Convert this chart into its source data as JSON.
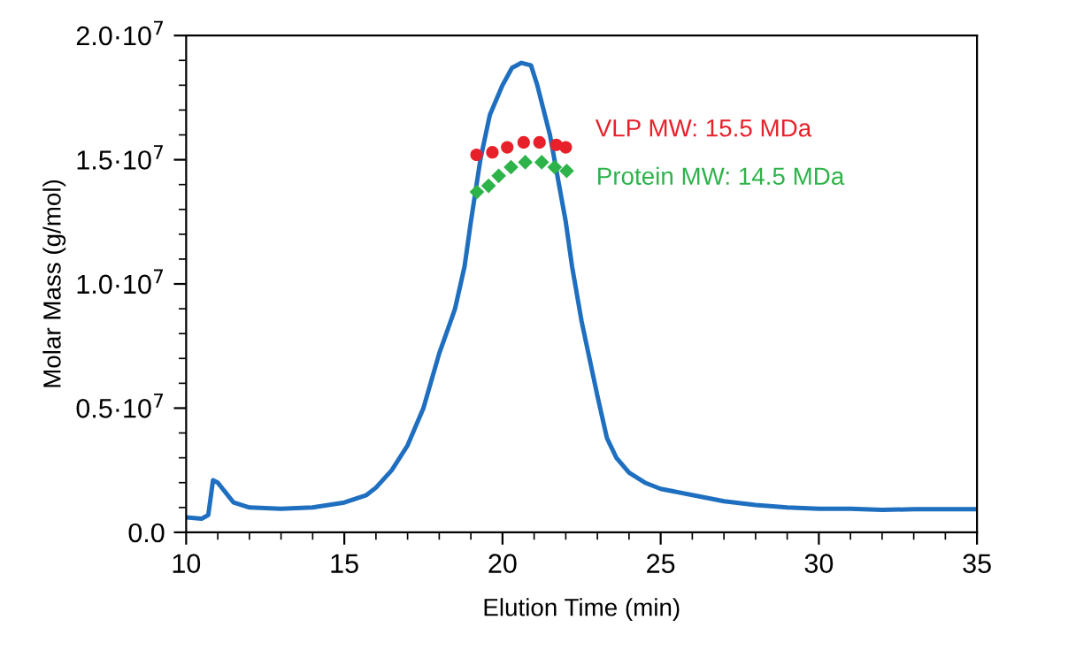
{
  "chart_data": {
    "type": "line",
    "xlabel": "Elution Time (min)",
    "ylabel": "Molar Mass (g/mol)",
    "xlim": [
      10,
      35
    ],
    "xticks": [
      10,
      15,
      20,
      25,
      30,
      35
    ],
    "ylim": [
      0,
      20000000
    ],
    "yticks": [
      {
        "value": 0,
        "label": "0.0"
      },
      {
        "value": 5000000,
        "label": "0.5·10$^{7}$"
      },
      {
        "value": 10000000,
        "label": "1.0·10$^{7}$"
      },
      {
        "value": 15000000,
        "label": "1.5·10$^{7}$"
      },
      {
        "value": 20000000,
        "label": "2.0·10$^{7}$"
      }
    ],
    "grid": false,
    "legend": false,
    "series": [
      {
        "color": "#1f6fc0",
        "marker": "none",
        "x": [
          10,
          10.5,
          10.7,
          10.85,
          11.0,
          11.5,
          12,
          13,
          14,
          15,
          15.7,
          16,
          16.5,
          17,
          17.5,
          18,
          18.5,
          18.8,
          19,
          19.3,
          19.6,
          20,
          20.3,
          20.6,
          20.9,
          21.1,
          21.5,
          22,
          22.2,
          22.5,
          23,
          23.3,
          23.6,
          24,
          24.5,
          25,
          26,
          27,
          28,
          29,
          30,
          31,
          32,
          33,
          35
        ],
        "values": [
          600000,
          550000,
          700000,
          2100000,
          2000000,
          1200000,
          1000000,
          950000,
          1000000,
          1200000,
          1500000,
          1800000,
          2500000,
          3500000,
          5000000,
          7200000,
          9000000,
          10700000,
          12500000,
          15000000,
          16800000,
          18000000,
          18700000,
          18900000,
          18800000,
          18000000,
          16000000,
          12500000,
          10700000,
          8500000,
          5500000,
          3800000,
          3000000,
          2400000,
          2000000,
          1750000,
          1500000,
          1250000,
          1100000,
          1000000,
          950000,
          950000,
          900000,
          930000,
          930000
        ]
      },
      {
        "type": "scatter",
        "name": "VLP MW: 15.5 MDa",
        "color": "#e8202a",
        "marker": "circle",
        "x": [
          19.18,
          19.68,
          20.15,
          20.67,
          21.17,
          21.7,
          22.0
        ],
        "values": [
          15200000,
          15300000,
          15500000,
          15700000,
          15700000,
          15600000,
          15500000
        ]
      },
      {
        "type": "scatter",
        "name": "Protein MW: 14.5 MDa",
        "color": "#2db34a",
        "marker": "diamond",
        "x": [
          19.19,
          19.56,
          19.88,
          20.27,
          20.72,
          21.24,
          21.65,
          22.03
        ],
        "values": [
          13700000,
          13950000,
          14350000,
          14700000,
          14900000,
          14900000,
          14700000,
          14550000
        ]
      }
    ]
  }
}
